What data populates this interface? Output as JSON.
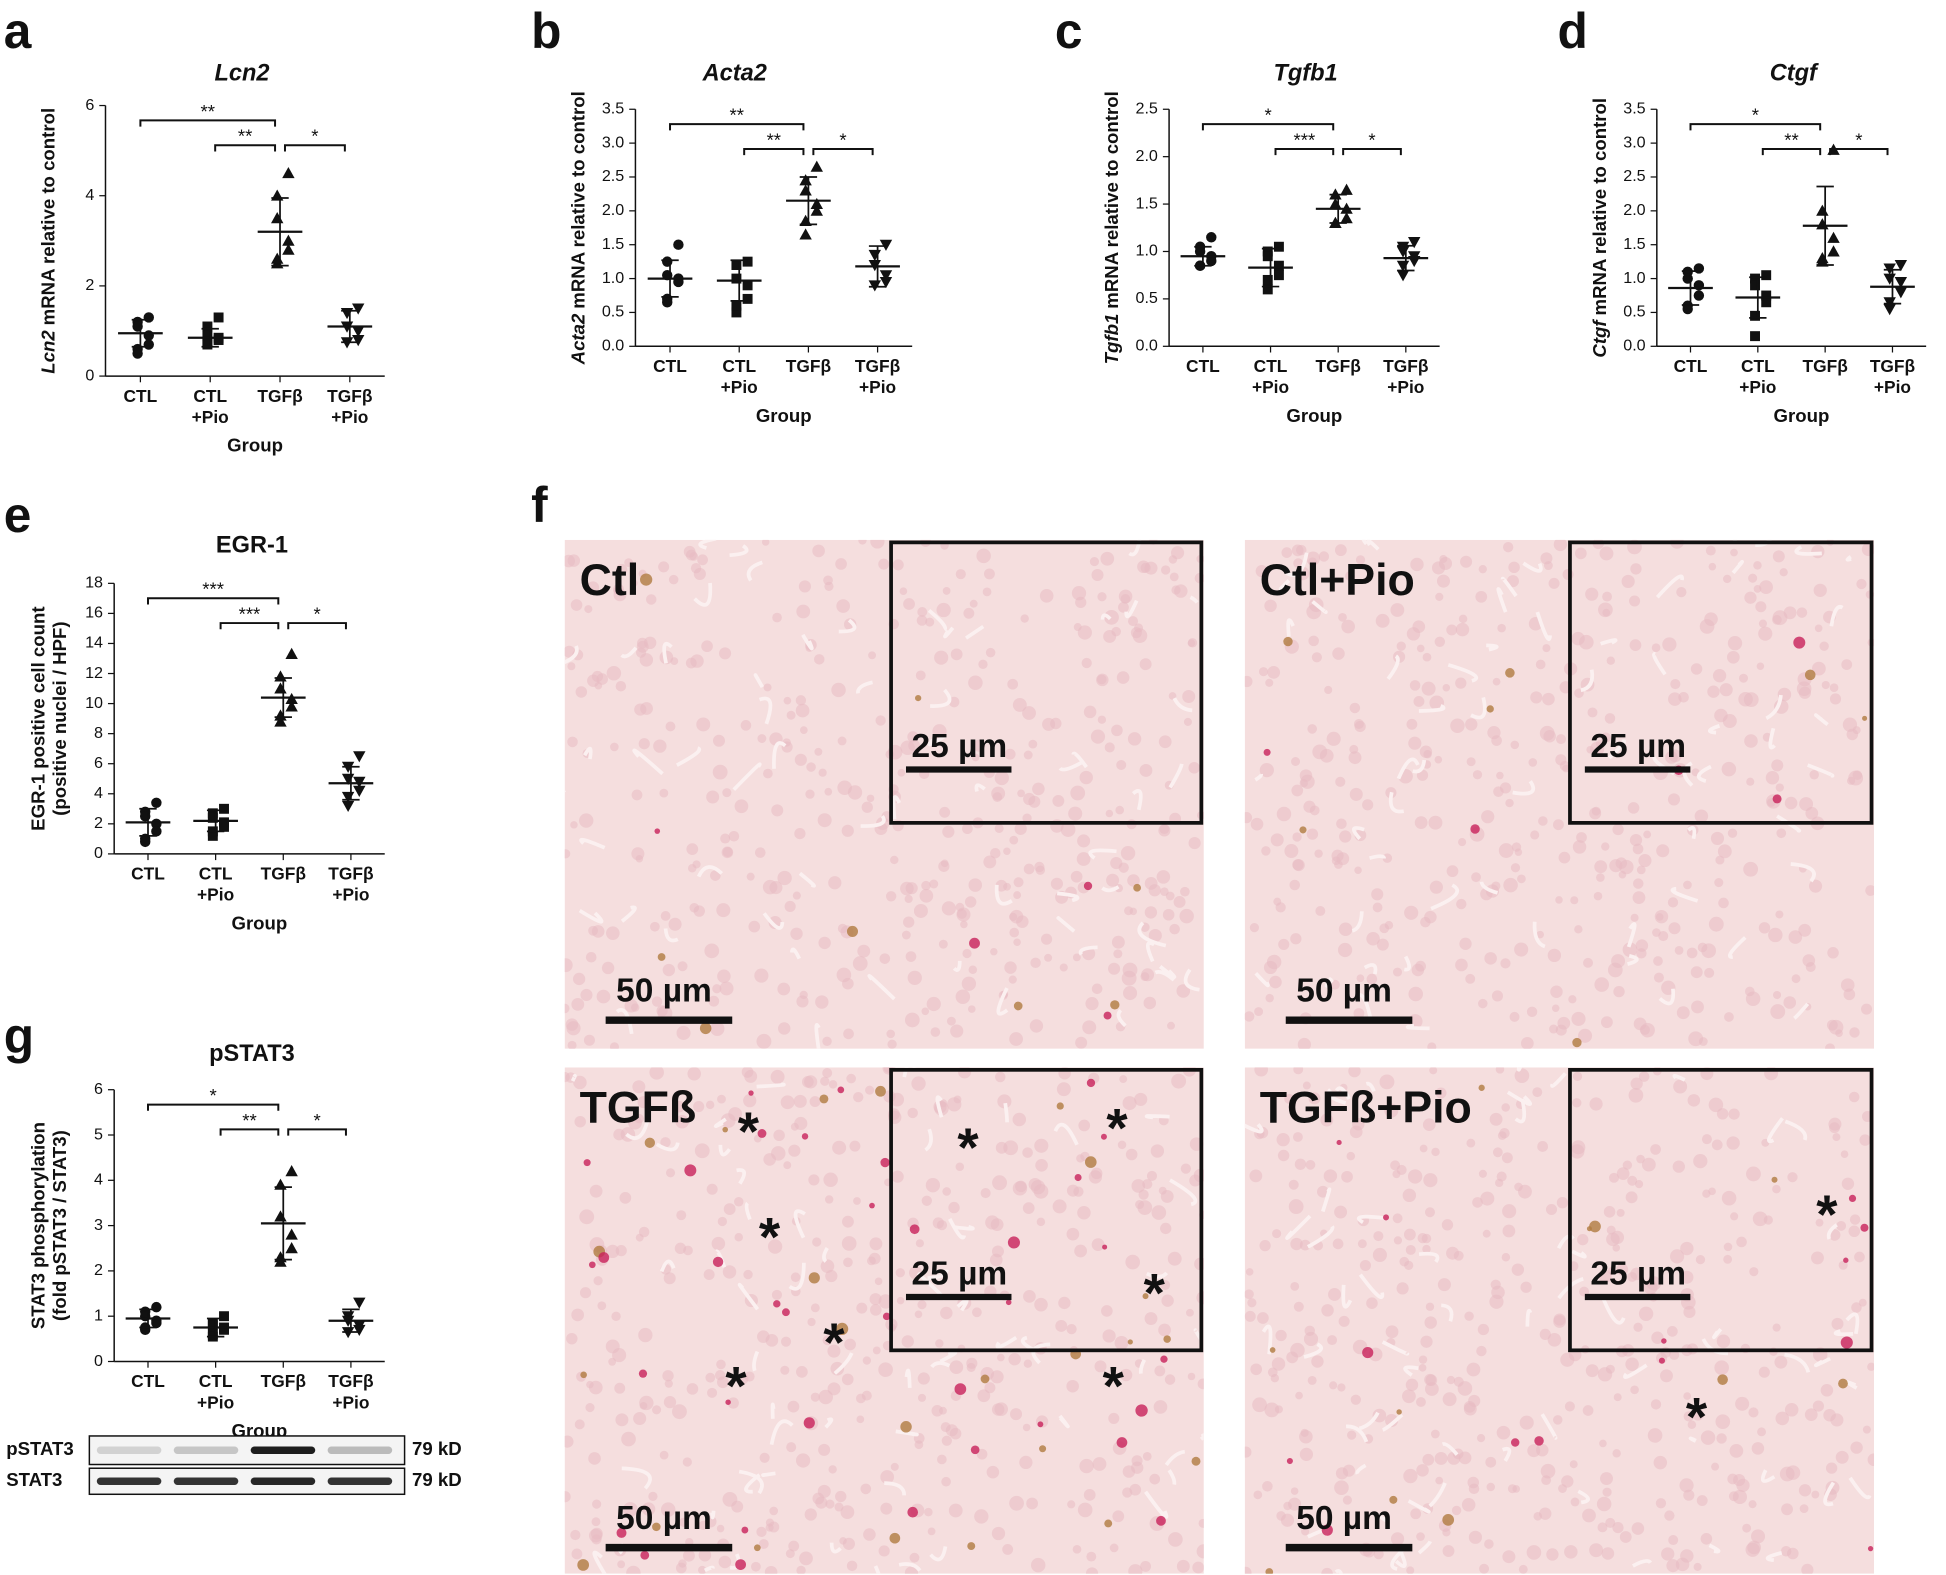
{
  "chart_data": [
    {
      "type": "scatter",
      "panel_letter": "a",
      "title": "Lcn2",
      "title_italic": true,
      "ylabel_italic": "Lcn2",
      "ylabel": [
        "mRNA relative to control"
      ],
      "xlabel": "Group",
      "categories": [
        [
          "CTL"
        ],
        [
          "CTL",
          "+Pio"
        ],
        [
          "TGFβ"
        ],
        [
          "TGFβ",
          "+Pio"
        ]
      ],
      "markers": [
        "circle",
        "square",
        "triangle",
        "triangle-down"
      ],
      "color": "#111111",
      "points": [
        [
          1.3,
          1.2,
          1.1,
          0.9,
          0.7,
          0.6,
          0.5
        ],
        [
          1.3,
          1.1,
          0.9,
          0.85,
          0.8,
          0.75,
          0.7
        ],
        [
          4.5,
          4.0,
          3.5,
          3.0,
          2.8,
          2.5,
          2.6
        ],
        [
          1.5,
          1.4,
          1.1,
          1.0,
          0.8,
          0.75
        ]
      ],
      "means": [
        0.95,
        0.85,
        3.2,
        1.1
      ],
      "sd": [
        0.3,
        0.2,
        0.75,
        0.35
      ],
      "ylim": [
        0,
        6
      ],
      "yticks": [
        0,
        2,
        4,
        6
      ],
      "comparisons": [
        {
          "from": 0,
          "to": 2,
          "label": "**"
        },
        {
          "from": 1,
          "to": 2,
          "label": "**"
        },
        {
          "from": 2,
          "to": 3,
          "label": "*"
        }
      ]
    },
    {
      "type": "scatter",
      "panel_letter": "b",
      "title": "Acta2",
      "title_italic": true,
      "ylabel_italic": "Acta2",
      "ylabel": [
        "mRNA relative to control"
      ],
      "xlabel": "Group",
      "categories": [
        [
          "CTL"
        ],
        [
          "CTL",
          "+Pio"
        ],
        [
          "TGFβ"
        ],
        [
          "TGFβ",
          "+Pio"
        ]
      ],
      "markers": [
        "circle",
        "square",
        "triangle",
        "triangle-down"
      ],
      "color": "#111111",
      "points": [
        [
          1.5,
          1.25,
          1.05,
          1.0,
          0.95,
          0.7,
          0.65
        ],
        [
          1.25,
          1.2,
          1.0,
          0.9,
          0.7,
          0.5,
          0.6
        ],
        [
          2.65,
          2.45,
          2.3,
          2.1,
          2.0,
          1.85,
          1.65
        ],
        [
          1.5,
          1.35,
          1.2,
          1.05,
          0.95,
          0.9
        ]
      ],
      "means": [
        1.0,
        0.97,
        2.15,
        1.18
      ],
      "sd": [
        0.27,
        0.3,
        0.35,
        0.3
      ],
      "ylim": [
        0,
        3.5
      ],
      "yticks": [
        {
          "value": 0,
          "label": "0.0"
        },
        0.5,
        {
          "value": 1,
          "label": "1.0"
        },
        1.5,
        {
          "value": 2,
          "label": "2.0"
        },
        2.5,
        {
          "value": 3,
          "label": "3.0"
        },
        3.5
      ],
      "comparisons": [
        {
          "from": 0,
          "to": 2,
          "label": "**"
        },
        {
          "from": 1,
          "to": 2,
          "label": "**"
        },
        {
          "from": 2,
          "to": 3,
          "label": "*"
        }
      ]
    },
    {
      "type": "scatter",
      "panel_letter": "c",
      "title": "Tgfb1",
      "title_italic": true,
      "ylabel_italic": "Tgfb1",
      "ylabel": [
        "mRNA relative to control"
      ],
      "xlabel": "Group",
      "categories": [
        [
          "CTL"
        ],
        [
          "CTL",
          "+Pio"
        ],
        [
          "TGFβ"
        ],
        [
          "TGFβ",
          "+Pio"
        ]
      ],
      "markers": [
        "circle",
        "square",
        "triangle",
        "triangle-down"
      ],
      "color": "#111111",
      "points": [
        [
          1.15,
          1.05,
          1.0,
          0.95,
          0.9,
          0.85,
          0.85
        ],
        [
          1.05,
          1.0,
          0.95,
          0.85,
          0.75,
          0.7,
          0.6
        ],
        [
          1.65,
          1.6,
          1.5,
          1.45,
          1.35,
          1.3,
          1.3
        ],
        [
          1.1,
          1.05,
          1.0,
          0.95,
          0.9,
          0.85,
          0.75
        ]
      ],
      "means": [
        0.95,
        0.83,
        1.45,
        0.93
      ],
      "sd": [
        0.1,
        0.2,
        0.15,
        0.13
      ],
      "ylim": [
        0,
        2.5
      ],
      "yticks": [
        {
          "value": 0,
          "label": "0.0"
        },
        0.5,
        {
          "value": 1,
          "label": "1.0"
        },
        1.5,
        {
          "value": 2,
          "label": "2.0"
        },
        2.5
      ],
      "comparisons": [
        {
          "from": 0,
          "to": 2,
          "label": "*"
        },
        {
          "from": 1,
          "to": 2,
          "label": "***"
        },
        {
          "from": 2,
          "to": 3,
          "label": "*"
        }
      ]
    },
    {
      "type": "scatter",
      "panel_letter": "d",
      "title": "Ctgf",
      "title_italic": true,
      "ylabel_italic": "Ctgf",
      "ylabel": [
        "mRNA relative to control"
      ],
      "xlabel": "Group",
      "categories": [
        [
          "CTL"
        ],
        [
          "CTL",
          "+Pio"
        ],
        [
          "TGFβ"
        ],
        [
          "TGFβ",
          "+Pio"
        ]
      ],
      "markers": [
        "circle",
        "square",
        "triangle",
        "triangle-down"
      ],
      "color": "#111111",
      "points": [
        [
          1.15,
          1.1,
          1.0,
          0.9,
          0.75,
          0.6,
          0.55
        ],
        [
          1.05,
          1.0,
          0.9,
          0.75,
          0.65,
          0.45,
          0.15
        ],
        [
          2.9,
          2.0,
          1.8,
          1.6,
          1.4,
          1.3,
          1.25
        ],
        [
          1.2,
          1.15,
          1.0,
          0.95,
          0.8,
          0.65,
          0.55
        ]
      ],
      "means": [
        0.86,
        0.72,
        1.78,
        0.88
      ],
      "sd": [
        0.25,
        0.3,
        0.58,
        0.25
      ],
      "ylim": [
        0,
        3.5
      ],
      "yticks": [
        {
          "value": 0,
          "label": "0.0"
        },
        0.5,
        {
          "value": 1,
          "label": "1.0"
        },
        1.5,
        {
          "value": 2,
          "label": "2.0"
        },
        2.5,
        {
          "value": 3,
          "label": "3.0"
        },
        3.5
      ],
      "comparisons": [
        {
          "from": 0,
          "to": 2,
          "label": "*"
        },
        {
          "from": 1,
          "to": 2,
          "label": "**"
        },
        {
          "from": 2,
          "to": 3,
          "label": "*"
        }
      ]
    },
    {
      "type": "scatter",
      "panel_letter": "e",
      "title": "EGR-1",
      "title_italic": false,
      "ylabel": [
        "EGR-1 positive cell count",
        "(positive nuclei / HPF)"
      ],
      "xlabel": "Group",
      "categories": [
        [
          "CTL"
        ],
        [
          "CTL",
          "+Pio"
        ],
        [
          "TGFβ"
        ],
        [
          "TGFβ",
          "+Pio"
        ]
      ],
      "markers": [
        "circle",
        "square",
        "triangle",
        "triangle-down"
      ],
      "color": "#111111",
      "points": [
        [
          3.4,
          2.8,
          2.5,
          2.0,
          1.5,
          1.0,
          0.8
        ],
        [
          3.0,
          2.7,
          2.4,
          2.1,
          1.8,
          1.5,
          1.2
        ],
        [
          13.3,
          11.8,
          11.0,
          10.3,
          9.8,
          9.2,
          8.8
        ],
        [
          6.5,
          5.8,
          5.0,
          4.8,
          4.2,
          3.8,
          3.2
        ]
      ],
      "means": [
        2.1,
        2.2,
        10.4,
        4.7
      ],
      "sd": [
        0.9,
        0.7,
        1.3,
        1.1
      ],
      "ylim": [
        0,
        18
      ],
      "yticks": [
        0,
        2,
        4,
        6,
        8,
        10,
        12,
        14,
        16,
        18
      ],
      "comparisons": [
        {
          "from": 0,
          "to": 2,
          "label": "***"
        },
        {
          "from": 1,
          "to": 2,
          "label": "***"
        },
        {
          "from": 2,
          "to": 3,
          "label": "*"
        }
      ]
    },
    {
      "type": "scatter",
      "panel_letter": "g",
      "title": "pSTAT3",
      "title_italic": false,
      "ylabel": [
        "STAT3 phosphorylation",
        "(fold pSTAT3 / STAT3)"
      ],
      "xlabel": "Group",
      "categories": [
        [
          "CTL"
        ],
        [
          "CTL",
          "+Pio"
        ],
        [
          "TGFβ"
        ],
        [
          "TGFβ",
          "+Pio"
        ]
      ],
      "markers": [
        "circle",
        "square",
        "triangle",
        "triangle-down"
      ],
      "color": "#111111",
      "points": [
        [
          1.2,
          1.1,
          1.0,
          0.9,
          0.85,
          0.75,
          0.7
        ],
        [
          1.0,
          0.85,
          0.8,
          0.75,
          0.7,
          0.6,
          0.55
        ],
        [
          4.2,
          3.9,
          3.2,
          2.8,
          2.5,
          2.3,
          2.2
        ],
        [
          1.3,
          1.0,
          0.9,
          0.8,
          0.7,
          0.65
        ]
      ],
      "means": [
        0.95,
        0.75,
        3.05,
        0.9
      ],
      "sd": [
        0.2,
        0.2,
        0.8,
        0.25
      ],
      "ylim": [
        0,
        6
      ],
      "yticks": [
        0,
        1,
        2,
        3,
        4,
        5,
        6
      ],
      "comparisons": [
        {
          "from": 0,
          "to": 2,
          "label": "*"
        },
        {
          "from": 1,
          "to": 2,
          "label": "**"
        },
        {
          "from": 2,
          "to": 3,
          "label": "*"
        }
      ]
    }
  ],
  "blot": {
    "rows": [
      {
        "label": "pSTAT3",
        "size": "79 kD"
      },
      {
        "label": "STAT3",
        "size": "79 kD"
      }
    ]
  },
  "micrographs": {
    "panel_letter": "f",
    "panels": [
      {
        "label": "Ctl",
        "scale_main": "50 µm",
        "scale_inset": "25 µm",
        "asterisks": []
      },
      {
        "label": "Ctl+Pio",
        "scale_main": "50 µm",
        "scale_inset": "25 µm",
        "asterisks": []
      },
      {
        "label": "TGFß",
        "scale_main": "50 µm",
        "scale_inset": "25 µm",
        "asterisks": [
          "*",
          "*",
          "*",
          "*",
          "*",
          "*",
          "*",
          "*"
        ]
      },
      {
        "label": "TGFß+Pio",
        "scale_main": "50 µm",
        "scale_inset": "25 µm",
        "asterisks": [
          "*",
          "*"
        ]
      }
    ]
  }
}
